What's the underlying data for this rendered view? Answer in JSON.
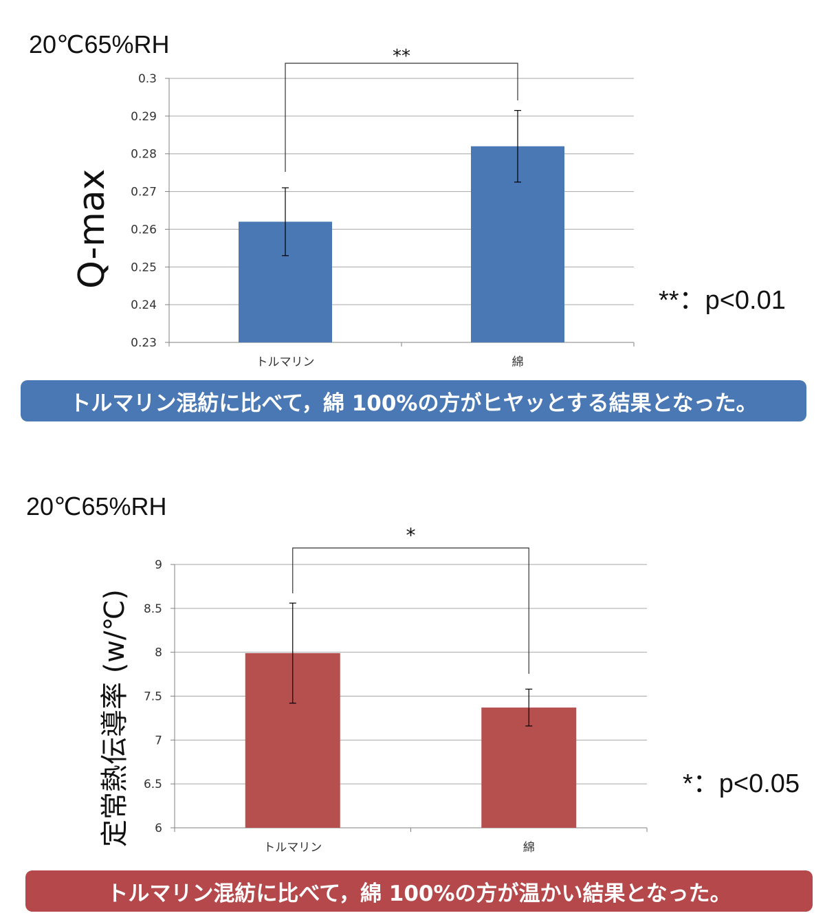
{
  "charts": [
    {
      "condition": "20℃65%RH",
      "significance_note": "**：p<0.01",
      "summary": "トルマリン混紡に比べて，綿 100%の方がヒヤッとする結果となった。",
      "colors": {
        "bar": "#4a78b4",
        "banner": "#4a78b4"
      }
    },
    {
      "condition": "20℃65%RH",
      "significance_note": "*：p<0.05",
      "summary": "トルマリン混紡に比べて，綿 100%の方が温かい結果となった。",
      "colors": {
        "bar": "#b5504e",
        "banner": "#b5484b"
      }
    }
  ],
  "chart_data": [
    {
      "type": "bar",
      "title": "",
      "xlabel": "",
      "ylabel": "Q-max",
      "categories": [
        "トルマリン",
        "綿"
      ],
      "values": [
        0.262,
        0.282
      ],
      "error": [
        0.009,
        0.0095
      ],
      "ylim": [
        0.23,
        0.3
      ],
      "yticks": [
        0.23,
        0.24,
        0.25,
        0.26,
        0.27,
        0.28,
        0.29,
        0.3
      ],
      "ytick_labels": [
        "0.23",
        "0.24",
        "0.25",
        "0.26",
        "0.27",
        "0.28",
        "0.29",
        "0.3"
      ],
      "grid": true,
      "significance": {
        "marker": "**",
        "pair": [
          0,
          1
        ]
      }
    },
    {
      "type": "bar",
      "title": "",
      "xlabel": "",
      "ylabel": "定常熱伝導率 (w/℃)",
      "categories": [
        "トルマリン",
        "綿"
      ],
      "values": [
        7.99,
        7.37
      ],
      "error": [
        0.57,
        0.21
      ],
      "ylim": [
        6,
        9
      ],
      "yticks": [
        6,
        6.5,
        7,
        7.5,
        8,
        8.5,
        9
      ],
      "ytick_labels": [
        "6",
        "6.5",
        "7",
        "7.5",
        "8",
        "8.5",
        "9"
      ],
      "grid": true,
      "significance": {
        "marker": "*",
        "pair": [
          0,
          1
        ]
      }
    }
  ]
}
